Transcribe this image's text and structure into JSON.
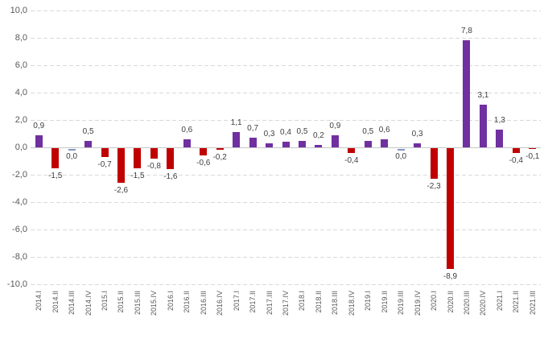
{
  "chart_data": {
    "type": "bar",
    "categories": [
      "2014.I",
      "2014.II",
      "2014.III",
      "2014.IV",
      "2015.I",
      "2015.II",
      "2015.III",
      "2015.IV",
      "2016.I",
      "2016.II",
      "2016.III",
      "2016.IV",
      "2017.I",
      "2017.II",
      "2017.III",
      "2017.IV",
      "2018.I",
      "2018.II",
      "2018.III",
      "2018.IV",
      "2019.I",
      "2019.II",
      "2019.III",
      "2019.IV",
      "2020.I",
      "2020.II",
      "2020.III",
      "2020.IV",
      "2021.I",
      "2021.II",
      "2021.III"
    ],
    "values": [
      0.9,
      -1.5,
      0.0,
      0.5,
      -0.7,
      -2.6,
      -1.5,
      -0.8,
      -1.6,
      0.6,
      -0.6,
      -0.2,
      1.1,
      0.7,
      0.3,
      0.4,
      0.5,
      0.2,
      0.9,
      -0.4,
      0.5,
      0.6,
      0.0,
      0.3,
      -2.3,
      -8.9,
      7.8,
      3.1,
      1.3,
      -0.4,
      -0.1
    ],
    "value_labels": [
      "0,9",
      "-1,5",
      "0,0",
      "0,5",
      "-0,7",
      "-2,6",
      "-1,5",
      "-0,8",
      "-1,6",
      "0,6",
      "-0,6",
      "-0,2",
      "1,1",
      "0,7",
      "0,3",
      "0,4",
      "0,5",
      "0,2",
      "0,9",
      "-0,4",
      "0,5",
      "0,6",
      "0,0",
      "0,3",
      "-2,3",
      "-8,9",
      "7,8",
      "3,1",
      "1,3",
      "-0,4",
      "-0,1"
    ],
    "y_ticks": [
      "10,0",
      "8,0",
      "6,0",
      "4,0",
      "2,0",
      "0,0",
      "-2,0",
      "-4,0",
      "-6,0",
      "-8,0",
      "-10,0"
    ],
    "ylim": [
      -10,
      10
    ],
    "ytick_step": 2,
    "grid": "horizontal dashed",
    "legend": "none",
    "xlabel": "",
    "ylabel": "",
    "colors": {
      "positive_bar": "#7030a0",
      "negative_bar": "#c00000",
      "zero_bar": "#8496c4",
      "gridline": "#d9d9d9",
      "axis_line": "#c6c6c6",
      "tick_text": "#595959",
      "value_text": "#3f3f3f",
      "background": "#ffffff"
    }
  }
}
